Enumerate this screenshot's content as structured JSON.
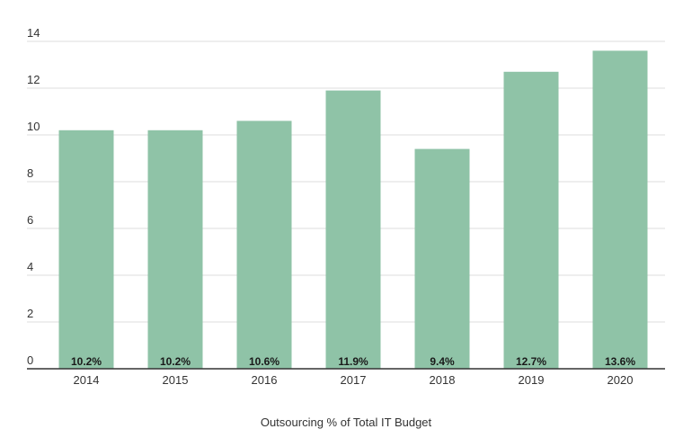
{
  "chart_data": {
    "type": "bar",
    "categories": [
      "2014",
      "2015",
      "2016",
      "2017",
      "2018",
      "2019",
      "2020"
    ],
    "values": [
      10.2,
      10.2,
      10.6,
      11.9,
      9.4,
      12.7,
      13.6
    ],
    "data_labels": [
      "10.2%",
      "10.2%",
      "10.6%",
      "11.9%",
      "9.4%",
      "12.7%",
      "13.6%"
    ],
    "xlabel": "Outsourcing % of Total IT Budget",
    "ylabel": "",
    "ylim": [
      0,
      14
    ],
    "yticks": [
      0,
      2,
      4,
      6,
      8,
      10,
      12,
      14
    ],
    "grid": true,
    "colors": {
      "bar": "#8fc3a7",
      "grid": "#dcdcdc",
      "axis": "#333333"
    }
  }
}
